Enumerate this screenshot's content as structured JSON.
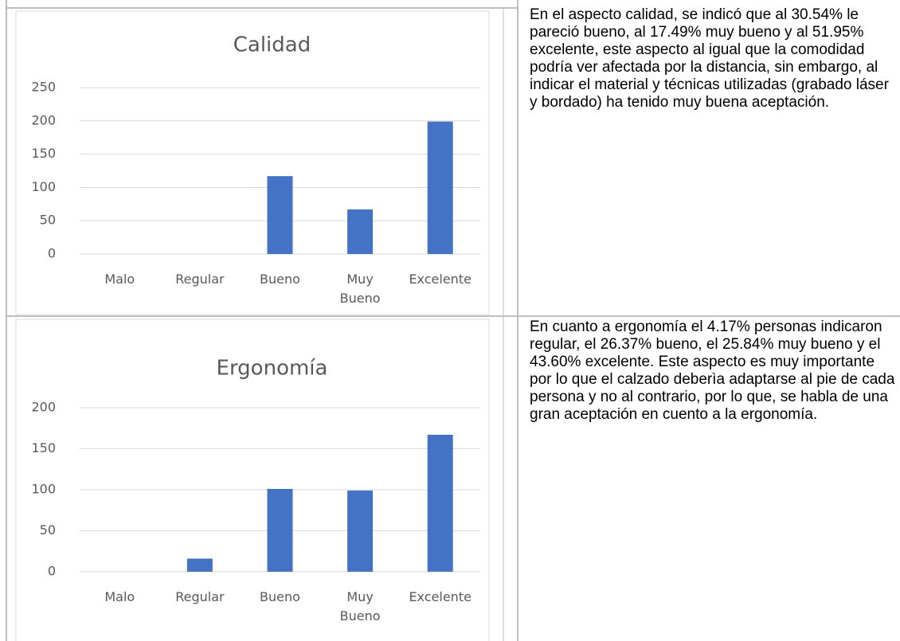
{
  "chart_data": [
    {
      "type": "bar",
      "title": "Calidad",
      "categories": [
        "Malo",
        "Regular",
        "Bueno",
        "Muy Bueno",
        "Excelente"
      ],
      "values": [
        0,
        0,
        117,
        67,
        199
      ],
      "color": "#4472c4",
      "ylim": [
        0,
        250
      ],
      "yticks": [
        0,
        50,
        100,
        150,
        200,
        250
      ],
      "grid": true
    },
    {
      "type": "bar",
      "title": "Ergonomía",
      "categories": [
        "Malo",
        "Regular",
        "Bueno",
        "Muy Bueno",
        "Excelente"
      ],
      "values": [
        0,
        16,
        101,
        99,
        167
      ],
      "color": "#4472c4",
      "ylim": [
        0,
        200
      ],
      "yticks": [
        0,
        50,
        100,
        150,
        200
      ],
      "grid": true
    }
  ],
  "paragraphs": [
    "En el aspecto calidad, se indicó que al 30.54% le pareció bueno, al 17.49% muy bueno y al 51.95% excelente, este aspecto al igual que la comodidad podría ver afectada por la distancia, sin embargo, al indicar el material y técnicas utilizadas (grabado láser y bordado) ha tenido muy buena aceptación.",
    "En cuanto a ergonomía el 4.17% personas indicaron regular, el 26.37% bueno, el 25.84% muy bueno y el 43.60% excelente. Este aspecto es muy importante por lo que el calzado deberìa adaptarse al pie de cada persona y no al contrario, por lo que, se habla de una gran aceptación en cuento a la ergonomía."
  ]
}
